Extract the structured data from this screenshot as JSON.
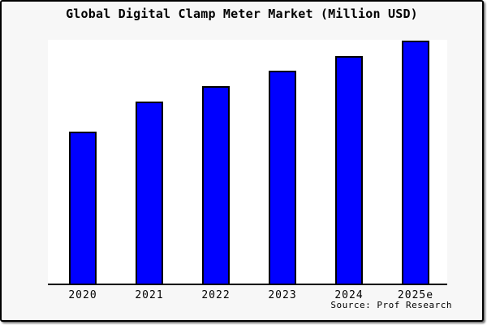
{
  "chart_data": {
    "type": "bar",
    "title": "Global Digital Clamp Meter Market (Million USD)",
    "categories": [
      "2020",
      "2021",
      "2022",
      "2023",
      "2024",
      "2025e"
    ],
    "values": [
      62.7,
      75.0,
      81.3,
      87.7,
      93.7,
      100.0
    ],
    "values_note": "Y axis is unlabeled in the image; values are a relative size index read from bar heights with 2025e = 100",
    "xlabel": "",
    "ylabel": "",
    "ylim": [
      0,
      100.5
    ],
    "grid": false,
    "legend": false,
    "y_axis_shown": false
  },
  "source_note": "Source: Prof Research",
  "colors": {
    "bar_fill": "#0000ff",
    "bar_border": "#000000",
    "figure_background": "#f7f7f7",
    "plot_background": "#ffffff",
    "axis_line": "#000000",
    "frame_border": "#000000",
    "text": "#000000"
  }
}
